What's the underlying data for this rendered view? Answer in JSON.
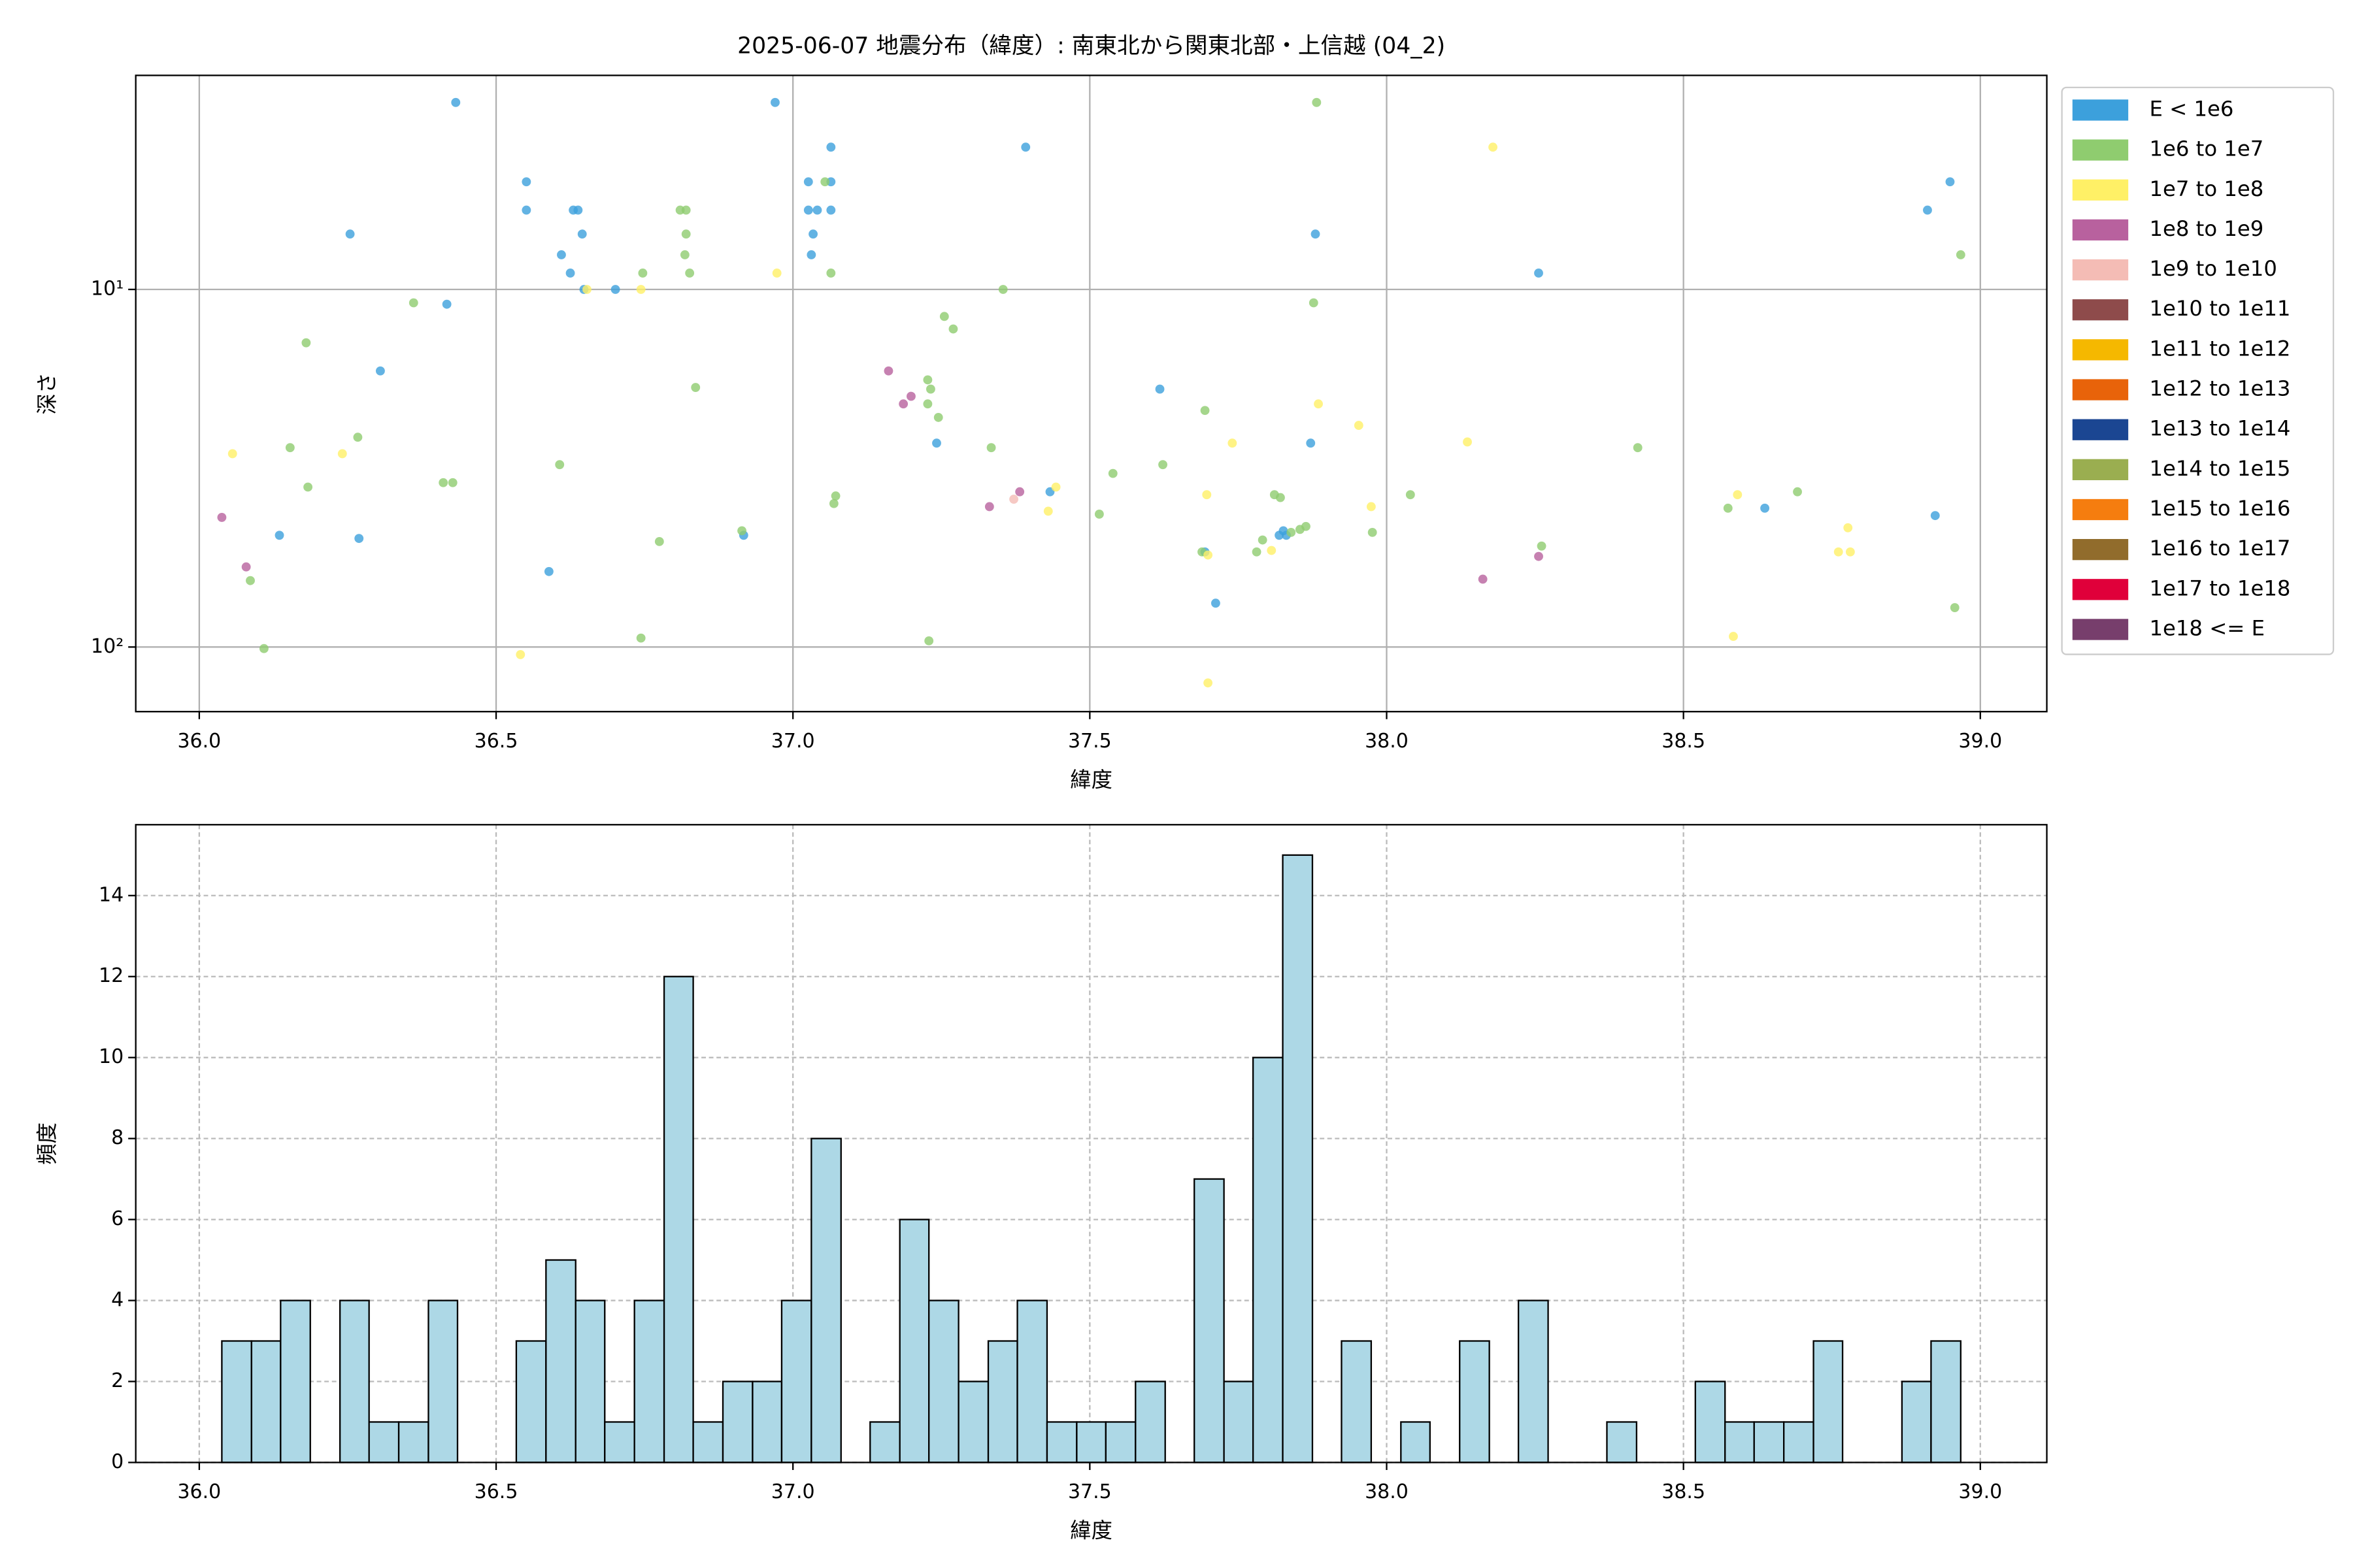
{
  "chart_data": [
    {
      "type": "scatter",
      "title": "2025-06-07 地震分布（緯度）: 南東北から関東北部・上信越 (04_2)",
      "xlabel": "緯度",
      "ylabel": "深さ",
      "xlim": [
        35.893,
        39.112
      ],
      "ylim": [
        2.52,
        151.6
      ],
      "yscale": "log",
      "y_inverted": true,
      "xticks": [
        {
          "value": 36,
          "label": "36.0"
        },
        36.5,
        {
          "value": 37,
          "label": "37.0"
        },
        37.5,
        {
          "value": 38,
          "label": "38.0"
        },
        38.5,
        {
          "value": 39,
          "label": "39.0"
        }
      ],
      "yticks": [
        {
          "value": 10,
          "label": "10¹"
        },
        {
          "value": 100,
          "label": "10²"
        }
      ],
      "grid": true,
      "legend": "outside upper right",
      "series": [
        {
          "name": "E < 1e6",
          "color": "#3ca0dc",
          "x": [
            36.432,
            36.97,
            37.064,
            37.392,
            36.551,
            37.026,
            37.064,
            36.551,
            36.63,
            36.638,
            37.026,
            37.041,
            37.064,
            36.254,
            36.645,
            37.034,
            37.88,
            36.61,
            37.031,
            36.625,
            36.648,
            36.701,
            38.256,
            36.417,
            36.305,
            37.618,
            37.242,
            37.872,
            37.433,
            38.911,
            38.949,
            38.637,
            36.135,
            36.269,
            36.917,
            36.589,
            37.712,
            37.694,
            37.826,
            37.831,
            37.819,
            38.924
          ],
          "values": [
            3.0,
            3.0,
            4.0,
            4.0,
            5.0,
            5.0,
            5.0,
            6.0,
            6.0,
            6.0,
            6.0,
            6.0,
            6.0,
            7.0,
            7.0,
            7.0,
            7.0,
            8.0,
            8.0,
            9.0,
            10.0,
            10.0,
            9.0,
            11.0,
            16.9,
            19.0,
            26.9,
            26.9,
            36.8,
            6.0,
            5.0,
            40.9,
            48.7,
            49.7,
            48.7,
            61.5,
            75.4,
            54.2,
            47.3,
            48.7,
            48.7,
            42.9
          ]
        },
        {
          "name": "1e6 to 1e7",
          "color": "#8fcc6f",
          "x": [
            37.882,
            37.054,
            36.81,
            36.82,
            36.82,
            36.818,
            36.826,
            36.361,
            36.18,
            36.267,
            36.153,
            36.183,
            36.411,
            36.427,
            36.607,
            36.836,
            36.747,
            36.775,
            36.086,
            36.109,
            36.744,
            36.914,
            37.064,
            37.072,
            37.069,
            37.255,
            37.27,
            37.227,
            37.232,
            37.227,
            37.245,
            37.334,
            37.354,
            37.229,
            37.516,
            37.539,
            37.623,
            37.694,
            37.689,
            37.781,
            37.791,
            37.811,
            37.821,
            37.839,
            37.854,
            37.864,
            37.877,
            37.976,
            38.04,
            38.423,
            38.575,
            38.692,
            38.261,
            38.957,
            38.967
          ],
          "values": [
            3.0,
            5.0,
            6.0,
            6.0,
            7.0,
            8.0,
            9.0,
            10.9,
            14.1,
            25.9,
            27.7,
            35.7,
            34.7,
            34.7,
            30.9,
            18.8,
            9.0,
            50.7,
            65.2,
            101,
            94.4,
            47.3,
            9.0,
            37.8,
            39.7,
            11.9,
            12.9,
            17.9,
            19.0,
            20.9,
            22.8,
            27.7,
            10.0,
            96.1,
            42.5,
            32.7,
            30.9,
            21.8,
            54.2,
            54.2,
            50.2,
            37.5,
            38.2,
            47.8,
            46.9,
            46.0,
            10.9,
            47.8,
            37.5,
            27.7,
            40.9,
            36.8,
            52.2,
            77.6,
            8.0
          ]
        },
        {
          "name": "1e7 to 1e8",
          "color": "#fff066",
          "x": [
            38.179,
            36.973,
            36.744,
            36.653,
            36.056,
            36.241,
            36.541,
            37.43,
            37.443,
            37.74,
            37.697,
            37.699,
            37.806,
            37.699,
            37.885,
            37.953,
            37.974,
            38.136,
            38.584,
            38.591,
            38.777,
            38.761,
            38.781
          ],
          "values": [
            4.0,
            9.0,
            10.0,
            10.0,
            28.8,
            28.8,
            105,
            41.7,
            35.7,
            26.9,
            37.5,
            55.3,
            53.7,
            126,
            20.9,
            24.0,
            40.5,
            26.7,
            93.4,
            37.5,
            46.4,
            54.2,
            54.2
          ]
        },
        {
          "name": "1e8 to 1e9",
          "color": "#b8619e",
          "x": [
            36.038,
            36.079,
            37.161,
            37.199,
            37.186,
            37.331,
            37.382,
            38.162,
            38.256
          ],
          "values": [
            43.4,
            59.7,
            16.9,
            19.9,
            20.9,
            40.5,
            36.8,
            64.6,
            55.8
          ]
        },
        {
          "name": "1e9 to 1e10",
          "color": "#f4bcb5",
          "x": [
            37.372
          ],
          "values": [
            38.6
          ]
        },
        {
          "name": "1e10 to 1e11",
          "color": "#8e4b4b",
          "x": [],
          "values": []
        },
        {
          "name": "1e11 to 1e12",
          "color": "#f5b800",
          "x": [],
          "values": []
        },
        {
          "name": "1e12 to 1e13",
          "color": "#e8630a",
          "x": [],
          "values": []
        },
        {
          "name": "1e13 to 1e14",
          "color": "#1b4692",
          "x": [],
          "values": []
        },
        {
          "name": "1e14 to 1e15",
          "color": "#9aae50",
          "x": [],
          "values": []
        },
        {
          "name": "1e15 to 1e16",
          "color": "#f57d0f",
          "x": [],
          "values": []
        },
        {
          "name": "1e16 to 1e17",
          "color": "#916c2c",
          "x": [],
          "values": []
        },
        {
          "name": "1e17 to 1e18",
          "color": "#e0003a",
          "x": [],
          "values": []
        },
        {
          "name": "1e18 <= E",
          "color": "#773e6c",
          "x": [],
          "values": []
        }
      ]
    },
    {
      "type": "histogram",
      "xlabel": "緯度",
      "ylabel": "頻度",
      "xlim": [
        35.893,
        39.112
      ],
      "ylim": [
        0,
        15.75
      ],
      "xticks": [
        {
          "value": 36,
          "label": "36.0"
        },
        36.5,
        {
          "value": 37,
          "label": "37.0"
        },
        37.5,
        {
          "value": 38,
          "label": "38.0"
        },
        38.5,
        {
          "value": 39,
          "label": "39.0"
        }
      ],
      "yticks": [
        0,
        2,
        4,
        6,
        8,
        10,
        12,
        14
      ],
      "grid": true,
      "grid_style": "dashed",
      "color": "#add8e6",
      "edgecolor": "#000000",
      "bins": [
        36.038,
        36.088,
        36.137,
        36.187,
        36.237,
        36.286,
        36.336,
        36.386,
        36.435,
        36.485,
        36.534,
        36.584,
        36.634,
        36.683,
        36.733,
        36.783,
        36.832,
        36.882,
        36.932,
        36.981,
        37.031,
        37.081,
        37.13,
        37.18,
        37.229,
        37.279,
        37.329,
        37.378,
        37.428,
        37.478,
        37.527,
        37.577,
        37.627,
        37.676,
        37.726,
        37.775,
        37.825,
        37.875,
        37.924,
        37.974,
        38.024,
        38.073,
        38.123,
        38.173,
        38.222,
        38.272,
        38.321,
        38.371,
        38.421,
        38.47,
        38.52,
        38.57,
        38.619,
        38.669,
        38.719,
        38.768,
        38.818,
        38.868,
        38.917,
        38.967
      ],
      "values": [
        3,
        3,
        4,
        0,
        4,
        1,
        1,
        4,
        0,
        0,
        3,
        5,
        4,
        1,
        4,
        12,
        1,
        2,
        2,
        4,
        8,
        0,
        1,
        6,
        4,
        2,
        3,
        4,
        1,
        1,
        1,
        2,
        0,
        7,
        2,
        10,
        15,
        0,
        3,
        0,
        1,
        0,
        3,
        0,
        4,
        0,
        0,
        1,
        0,
        0,
        2,
        1,
        1,
        1,
        3,
        0,
        0,
        2,
        3
      ]
    }
  ]
}
